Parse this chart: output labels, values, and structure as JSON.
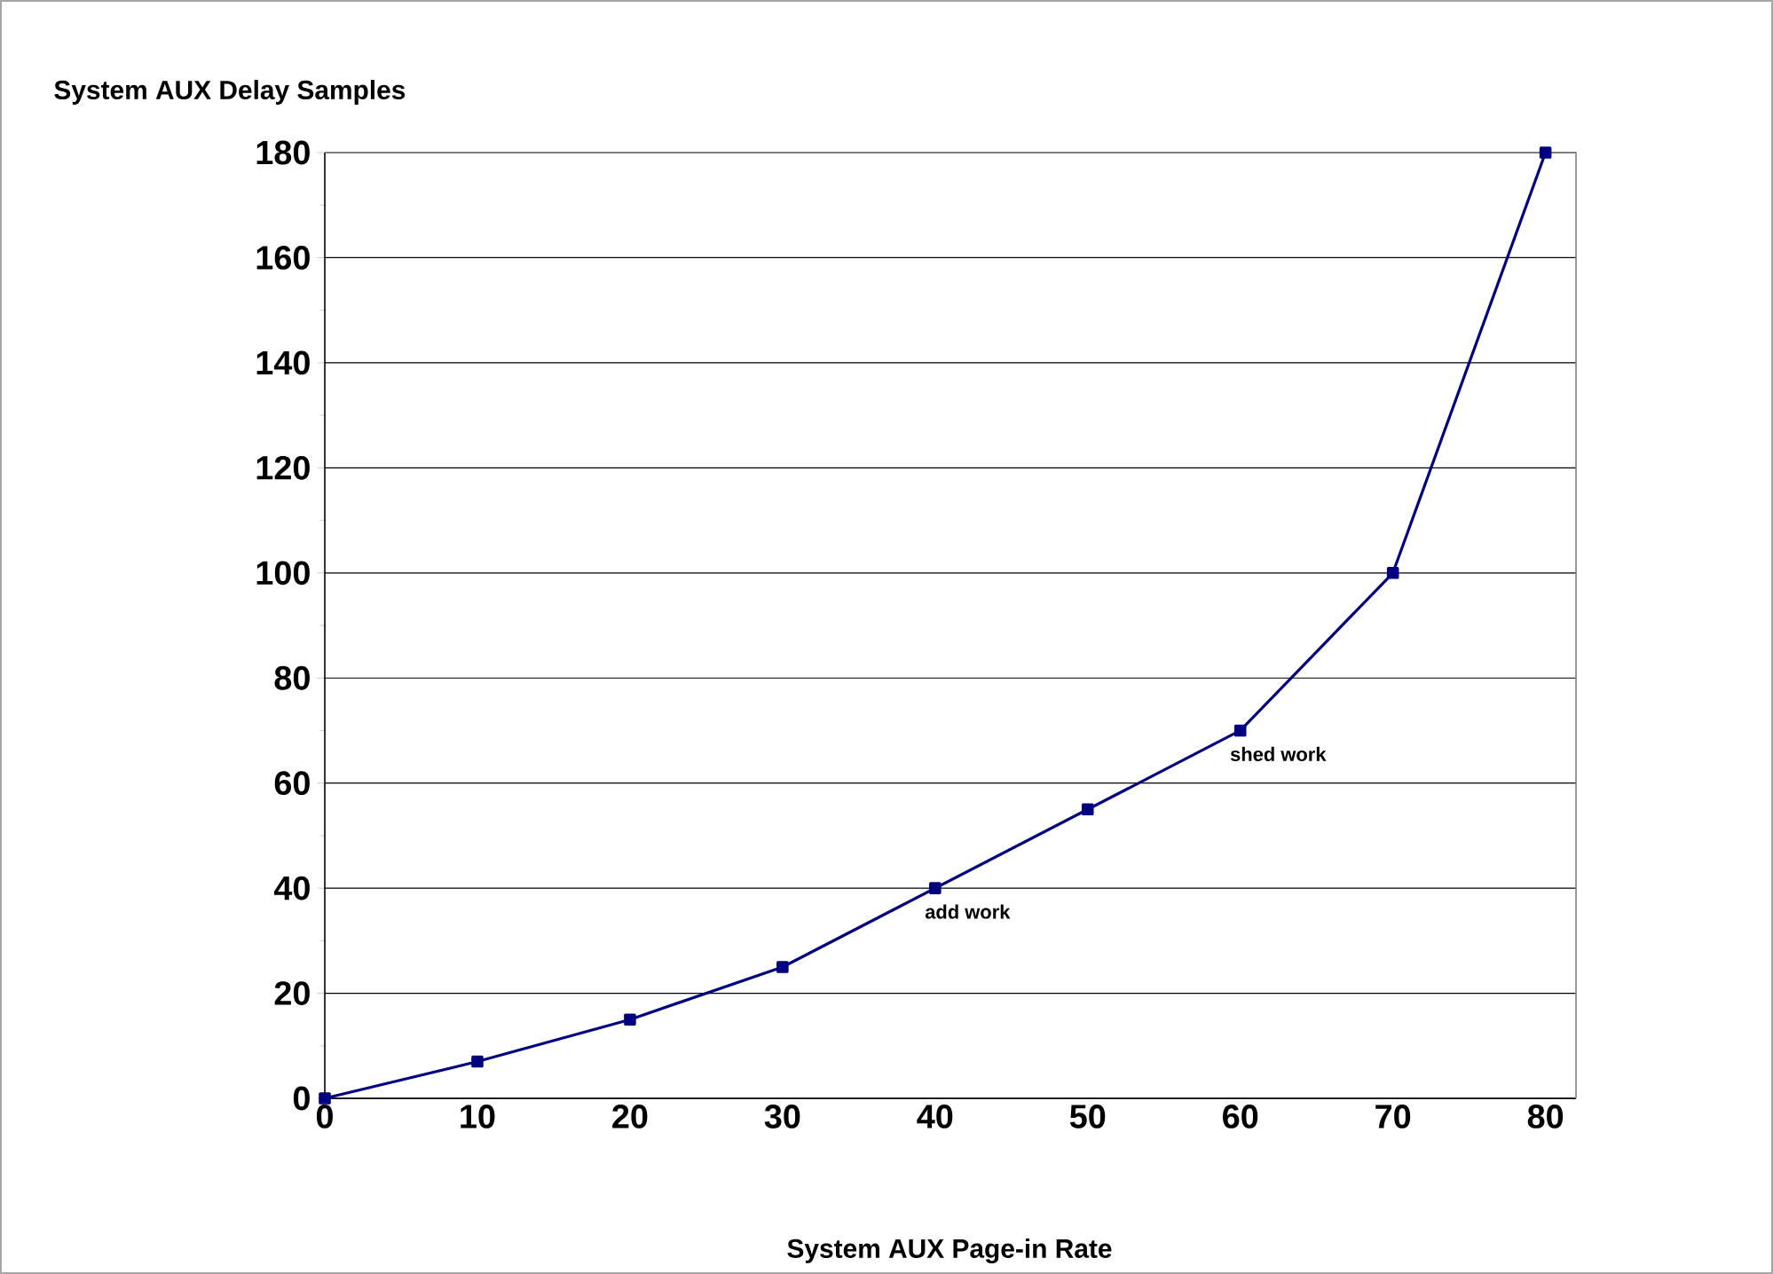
{
  "chart_data": {
    "type": "line",
    "xlabel": "System AUX Page-in Rate",
    "ylabel": "System AUX Delay Samples",
    "x": [
      0,
      10,
      20,
      30,
      40,
      50,
      60,
      70,
      80
    ],
    "series": [
      {
        "color": "#000080",
        "values": [
          0,
          7,
          15,
          25,
          40,
          55,
          70,
          100,
          180
        ]
      }
    ],
    "xlim": [
      0,
      82
    ],
    "ylim": [
      0,
      180
    ],
    "xticks": [
      0,
      10,
      20,
      30,
      40,
      50,
      60,
      70,
      80
    ],
    "yticks": [
      0,
      20,
      40,
      60,
      80,
      100,
      120,
      140,
      160,
      180
    ],
    "grid": "y",
    "marker": "square",
    "line_style": "solid",
    "annotations": [
      {
        "text": "add work",
        "x": 40,
        "y": 40
      },
      {
        "text": "shed work",
        "x": 60,
        "y": 70
      }
    ]
  }
}
